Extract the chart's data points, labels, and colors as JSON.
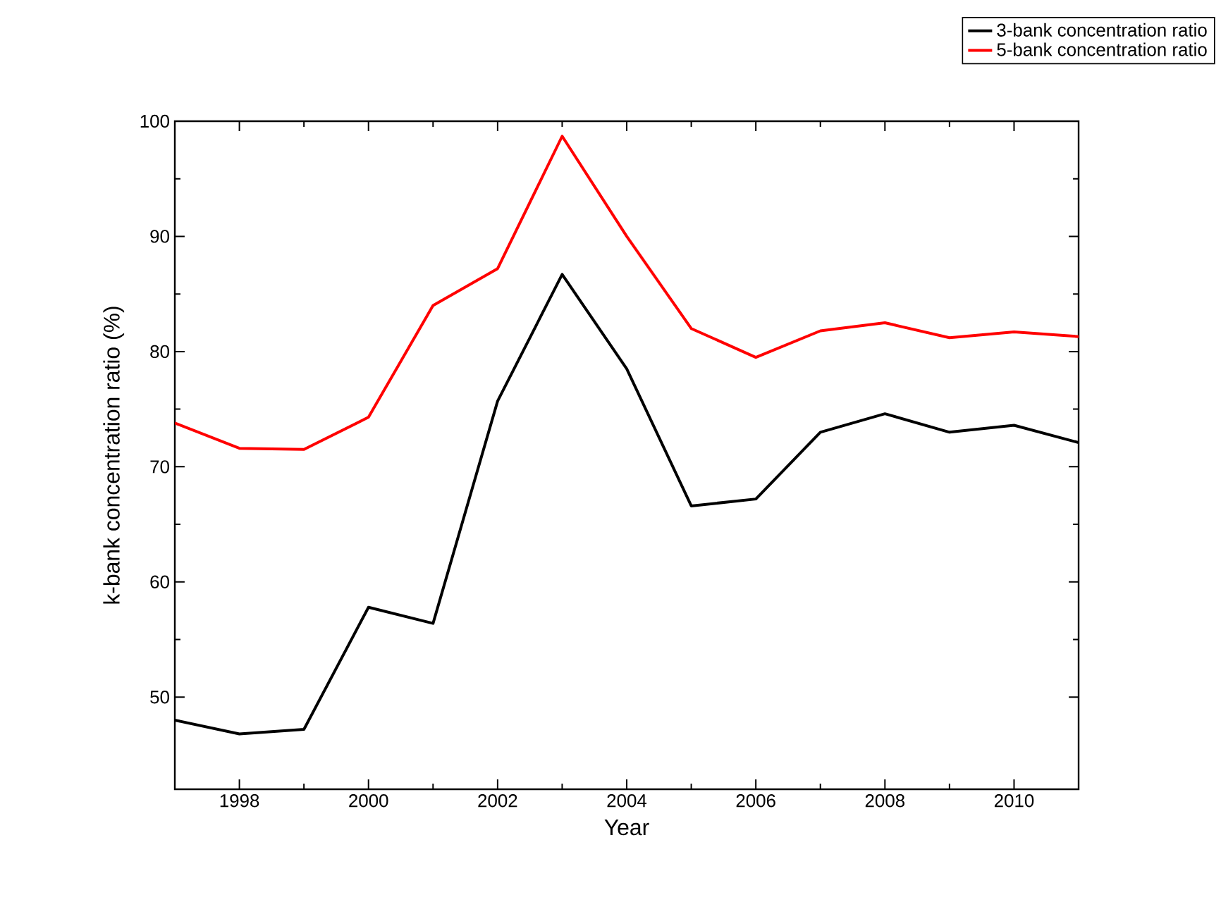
{
  "chart_data": {
    "type": "line",
    "xlabel": "Year",
    "ylabel": "k-bank concentration ratio (%)",
    "x": [
      1997,
      1998,
      1999,
      2000,
      2001,
      2002,
      2003,
      2004,
      2005,
      2006,
      2007,
      2008,
      2009,
      2010,
      2011
    ],
    "series": [
      {
        "name": "3-bank concentration ratio",
        "color": "#000000",
        "values": [
          48.0,
          46.8,
          47.2,
          57.8,
          56.4,
          75.7,
          86.7,
          78.5,
          66.6,
          67.2,
          73.0,
          74.6,
          73.0,
          73.6,
          72.1
        ]
      },
      {
        "name": "5-bank concentration ratio",
        "color": "#ff0000",
        "values": [
          73.8,
          71.6,
          71.5,
          74.3,
          84.0,
          87.2,
          98.7,
          90.0,
          82.0,
          79.5,
          81.8,
          82.5,
          81.2,
          81.7,
          81.3
        ]
      }
    ],
    "xlim": [
      1997,
      2011
    ],
    "xticks": [
      1998,
      2000,
      2002,
      2004,
      2006,
      2008,
      2010
    ],
    "ylim": [
      42,
      100
    ],
    "yticks": [
      50,
      60,
      70,
      80,
      90,
      100
    ],
    "grid": false,
    "legend": "top right",
    "marker": "none",
    "line_style": "solid"
  }
}
